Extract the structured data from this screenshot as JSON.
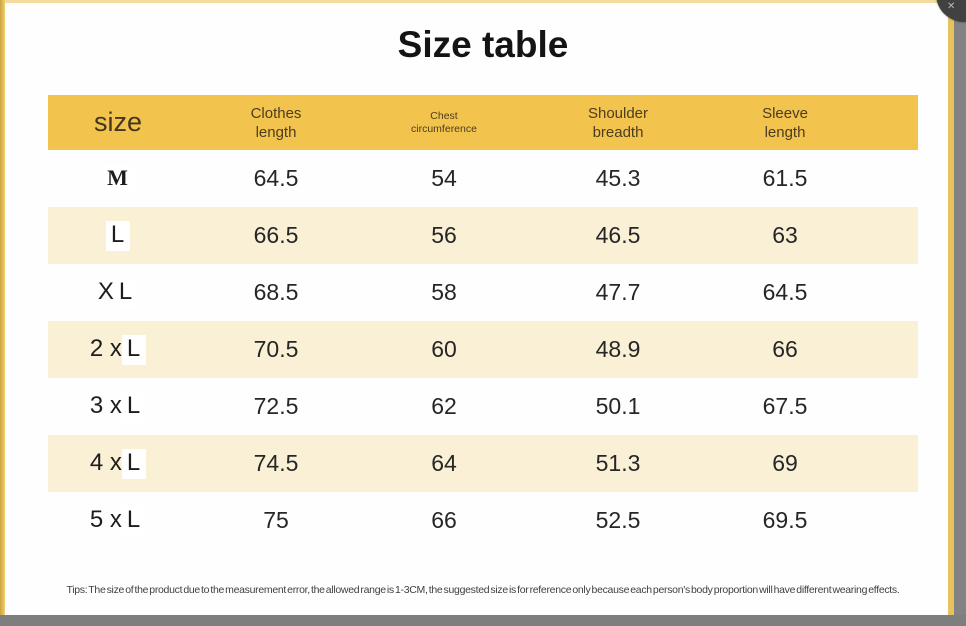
{
  "title": "Size table",
  "table": {
    "headers": [
      {
        "label": "size"
      },
      {
        "line1": "Clothes",
        "line2": "length"
      },
      {
        "line1": "Chest",
        "line2": "circumference"
      },
      {
        "line1": "Shoulder",
        "line2": "breadth"
      },
      {
        "line1": "Sleeve",
        "line2": "length"
      }
    ],
    "rows": [
      {
        "size_prefix": "",
        "size_patch": "M",
        "size_patch_class": "patch serif",
        "values": [
          "64.5",
          "54",
          "45.3",
          "61.5"
        ]
      },
      {
        "size_prefix": "",
        "size_patch": "L",
        "size_patch_class": "patch",
        "values": [
          "66.5",
          "56",
          "46.5",
          "63"
        ]
      },
      {
        "size_prefix": "X",
        "size_patch": "L",
        "size_patch_class": "patch",
        "values": [
          "68.5",
          "58",
          "47.7",
          "64.5"
        ]
      },
      {
        "size_prefix": "2 x",
        "size_patch": "L",
        "size_patch_class": "patch",
        "values": [
          "70.5",
          "60",
          "48.9",
          "66"
        ]
      },
      {
        "size_prefix": "3 x",
        "size_patch": "L",
        "size_patch_class": "patch",
        "values": [
          "72.5",
          "62",
          "50.1",
          "67.5"
        ]
      },
      {
        "size_prefix": "4 x",
        "size_patch": "L",
        "size_patch_class": "patch",
        "values": [
          "74.5",
          "64",
          "51.3",
          "69"
        ]
      },
      {
        "size_prefix": "5 x",
        "size_patch": "L",
        "size_patch_class": "patch",
        "values": [
          "75",
          "66",
          "52.5",
          "69.5"
        ]
      }
    ]
  },
  "tips": "Tips: The size of the product due to the measurement error, the allowed range is 1-3CM, the suggested size is for reference only because each person's body proportion will have different wearing effects.",
  "colors": {
    "header_band": "#F2C44D",
    "row_stripe": "#FAF0D6",
    "frame_yellow": "#EFC868",
    "edge_gray": "#7E7E7E",
    "badge_gray": "#414141"
  },
  "corner_button_glyph": "✕",
  "chart_data": {
    "type": "table",
    "title": "Size table",
    "columns": [
      "size",
      "Clothes length",
      "Chest circumference",
      "Shoulder breadth",
      "Sleeve length"
    ],
    "rows": [
      [
        "M",
        64.5,
        54,
        45.3,
        61.5
      ],
      [
        "L",
        66.5,
        56,
        46.5,
        63
      ],
      [
        "XL",
        68.5,
        58,
        47.7,
        64.5
      ],
      [
        "2xL",
        70.5,
        60,
        48.9,
        66
      ],
      [
        "3xL",
        72.5,
        62,
        50.1,
        67.5
      ],
      [
        "4xL",
        74.5,
        64,
        51.3,
        69
      ],
      [
        "5xL",
        75,
        66,
        52.5,
        69.5
      ]
    ],
    "note": "Measurement error allowed range is 1-3CM; suggested size is for reference only."
  }
}
